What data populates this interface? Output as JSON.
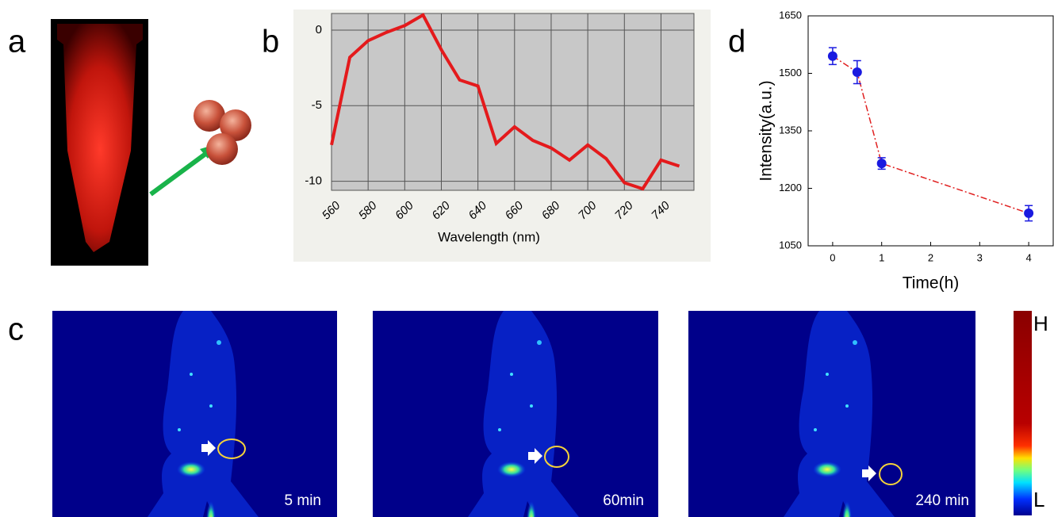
{
  "panel_labels": [
    "a",
    "b",
    "d",
    "c"
  ],
  "chart_data": [
    {
      "type": "line",
      "xlabel": "Wavelength (nm)",
      "x": [
        560,
        570,
        580,
        590,
        600,
        610,
        620,
        630,
        640,
        650,
        660,
        670,
        680,
        690,
        700,
        710,
        720,
        730,
        740,
        750
      ],
      "values": [
        -7.6,
        -1.8,
        -0.7,
        -0.15,
        0.3,
        1.0,
        -1.3,
        -3.3,
        -3.7,
        -7.5,
        -6.4,
        -7.3,
        -7.8,
        -8.6,
        -7.6,
        -8.5,
        -10.1,
        -10.5,
        -8.6,
        -9.0
      ],
      "color": "#e41a1c",
      "xlim": [
        560,
        758
      ],
      "xticks": [
        560,
        580,
        600,
        620,
        640,
        660,
        680,
        700,
        720,
        740
      ],
      "ylim": [
        -10.6,
        1.1
      ],
      "yticks": [
        -10,
        -5,
        0
      ],
      "grid": true
    },
    {
      "type": "scatter",
      "xlabel": "Time(h)",
      "ylabel": "Intensity(a.u.)",
      "x": [
        0,
        0.5,
        1,
        4
      ],
      "values": [
        1545,
        1503,
        1265,
        1135
      ],
      "errors": [
        22,
        30,
        15,
        20
      ],
      "color": "#1a1ae0",
      "line_color": "#e02020",
      "linestyle": "dashdot",
      "xlim": [
        -0.5,
        4.5
      ],
      "xticks": [
        0,
        1,
        2,
        3,
        4
      ],
      "ylim": [
        1050,
        1650
      ],
      "yticks": [
        1050,
        1200,
        1350,
        1500,
        1650
      ],
      "grid": false
    }
  ],
  "images": {
    "time_labels": [
      "5 min",
      "60min",
      "240 min"
    ]
  },
  "colorbar": {
    "high": "H",
    "low": "L"
  }
}
